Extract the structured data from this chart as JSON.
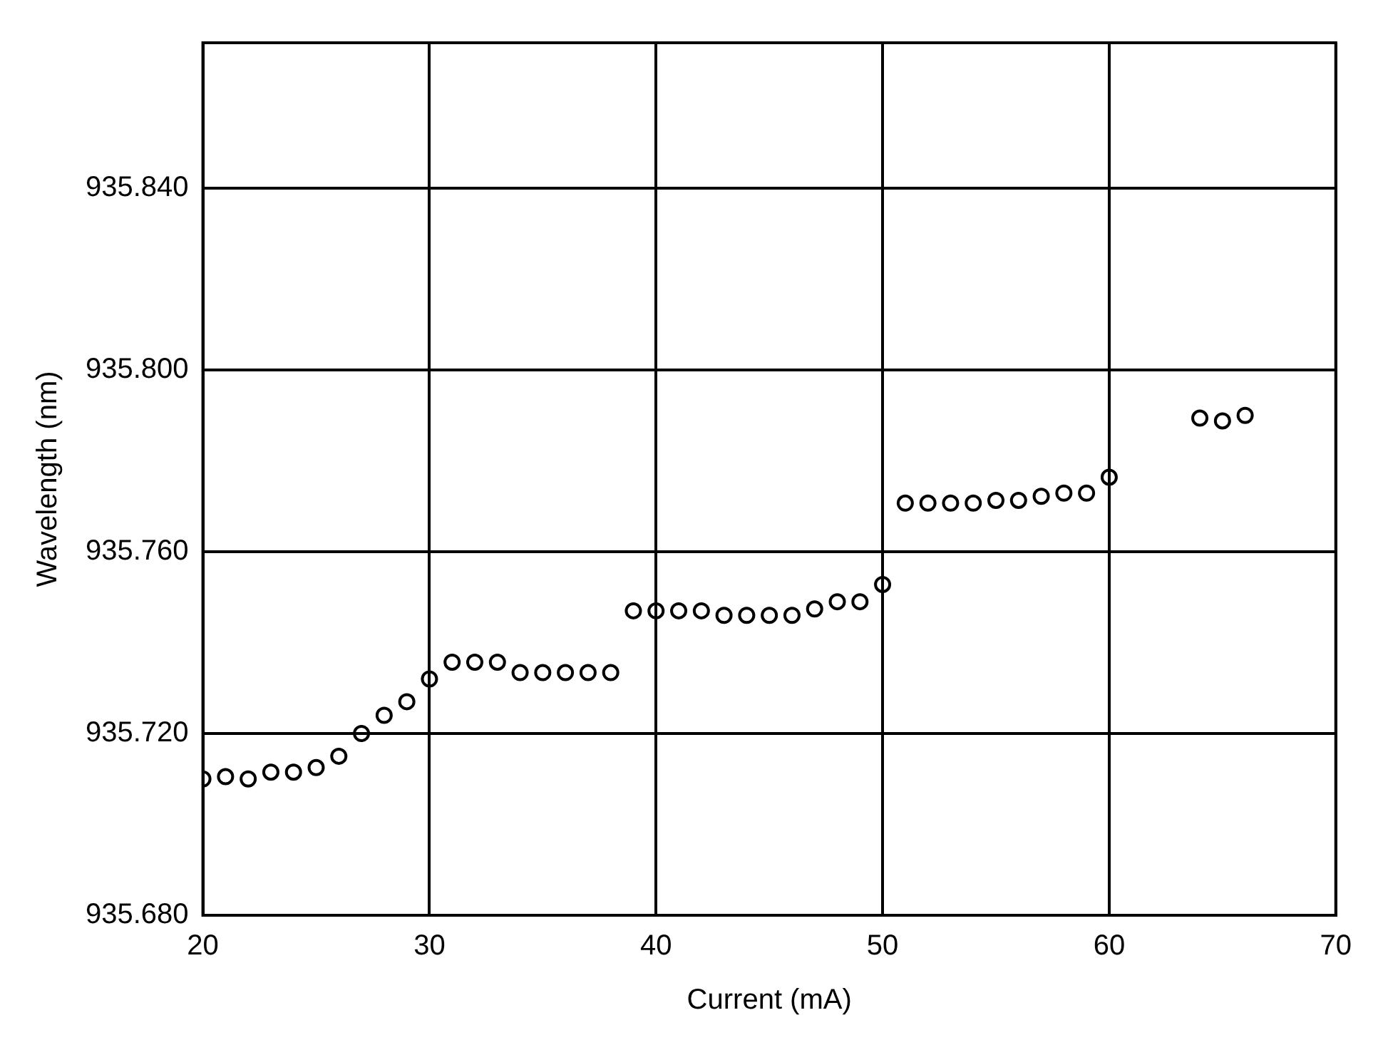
{
  "chart_data": {
    "type": "scatter",
    "xlabel": "Current (mA)",
    "ylabel": "Wavelength (nm)",
    "x": [
      20,
      21,
      22,
      23,
      24,
      25,
      26,
      27,
      28,
      29,
      30,
      31,
      32,
      33,
      34,
      35,
      36,
      37,
      38,
      39,
      40,
      41,
      42,
      43,
      44,
      45,
      46,
      47,
      48,
      49,
      50,
      51,
      52,
      53,
      54,
      55,
      56,
      57,
      58,
      59,
      60,
      64,
      65,
      66
    ],
    "series": [
      {
        "color": "#000000",
        "values": [
          935.71,
          935.7105,
          935.71,
          935.7115,
          935.7115,
          935.7125,
          935.715,
          935.72,
          935.724,
          935.727,
          935.732,
          935.7357,
          935.7357,
          935.7357,
          935.7334,
          935.7334,
          935.7334,
          935.7334,
          935.7334,
          935.747,
          935.747,
          935.747,
          935.747,
          935.746,
          935.746,
          935.746,
          935.746,
          935.7474,
          935.749,
          935.749,
          935.7528,
          935.7707,
          935.7707,
          935.7707,
          935.7707,
          935.7713,
          935.7713,
          935.7722,
          935.7729,
          935.7729,
          935.7764,
          935.7894,
          935.7888,
          935.79
        ]
      }
    ],
    "xlim": [
      20,
      70
    ],
    "xticks": [
      20,
      30,
      40,
      50,
      60,
      70
    ],
    "ylim": [
      935.68,
      935.872
    ],
    "yticks": [
      {
        "value": 935.68,
        "label": "935.680"
      },
      {
        "value": 935.72,
        "label": "935.720"
      },
      {
        "value": 935.76,
        "label": "935.760"
      },
      {
        "value": 935.8,
        "label": "935.800"
      },
      {
        "value": 935.84,
        "label": "935.840"
      }
    ],
    "grid": true,
    "legend": false,
    "marker": "circle"
  }
}
